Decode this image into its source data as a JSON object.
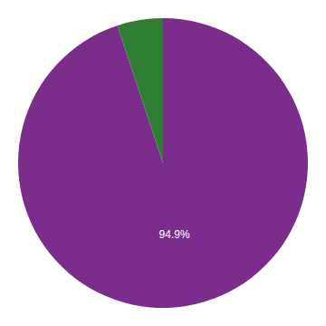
{
  "chart_data": {
    "type": "pie",
    "values": [
      94.9,
      5.1
    ],
    "value_labels": [
      "94.9%",
      null
    ],
    "colors": [
      "#7B2D8B",
      "#2E7D32"
    ]
  }
}
